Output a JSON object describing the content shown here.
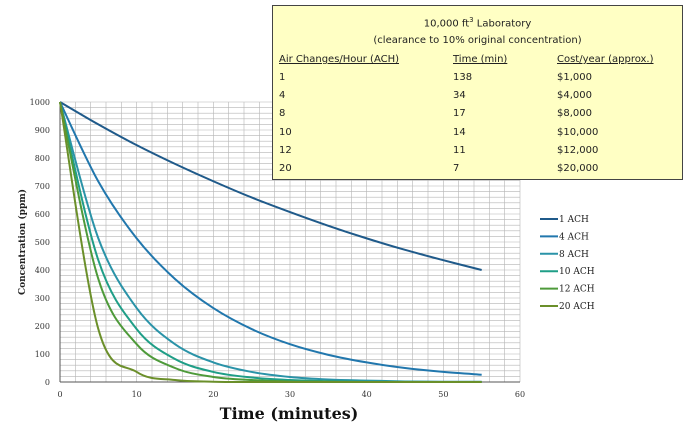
{
  "info_box": {
    "title_prefix": "10,000 ft",
    "title_sup": "3",
    "title_suffix": " Laboratory",
    "subtitle": "(clearance to 10% original concentration)",
    "headers": [
      "Air Changes/Hour (ACH)",
      "Time (min)",
      "Cost/year (approx.)"
    ],
    "rows": [
      [
        "1",
        "138",
        "$1,000"
      ],
      [
        "4",
        "34",
        "$4,000"
      ],
      [
        "8",
        "17",
        "$8,000"
      ],
      [
        "10",
        "14",
        "$10,000"
      ],
      [
        "12",
        "11",
        "$12,000"
      ],
      [
        "20",
        "7",
        "$20,000"
      ]
    ]
  },
  "chart_data": {
    "type": "line",
    "title": "",
    "xlabel": "Time (minutes)",
    "ylabel": "Concentration (ppm)",
    "xlim": [
      0,
      60
    ],
    "ylim": [
      0,
      1000
    ],
    "x_ticks": [
      0,
      10,
      20,
      30,
      40,
      50,
      60
    ],
    "y_ticks": [
      0,
      100,
      200,
      300,
      400,
      500,
      600,
      700,
      800,
      900,
      1000
    ],
    "grid": true,
    "legend_position": "right",
    "x": [
      0,
      5,
      10,
      15,
      20,
      25,
      30,
      35,
      40,
      45,
      50,
      55
    ],
    "series": [
      {
        "name": "1 ACH",
        "color": "#1f5a8a",
        "values": [
          1000,
          920,
          846,
          779,
          717,
          659,
          607,
          558,
          513,
          472,
          435,
          400
        ]
      },
      {
        "name": "4 ACH",
        "color": "#2177ad",
        "values": [
          1000,
          716,
          513,
          368,
          264,
          189,
          135,
          97,
          70,
          50,
          36,
          26
        ]
      },
      {
        "name": "8 ACH",
        "color": "#2a93a8",
        "values": [
          1000,
          513,
          264,
          135,
          70,
          36,
          18,
          9,
          5,
          2,
          1,
          1
        ]
      },
      {
        "name": "10 ACH",
        "color": "#1f9e87",
        "values": [
          1000,
          435,
          189,
          82,
          36,
          16,
          7,
          3,
          1,
          1,
          0,
          0
        ]
      },
      {
        "name": "12 ACH",
        "color": "#4e9a3a",
        "values": [
          1000,
          368,
          135,
          50,
          18,
          7,
          2,
          1,
          0,
          0,
          0,
          0
        ]
      },
      {
        "name": "20 ACH",
        "color": "#6b8f2a",
        "values": [
          1000,
          189,
          36,
          7,
          1,
          0,
          0,
          0,
          0,
          0,
          0,
          0
        ]
      }
    ]
  }
}
